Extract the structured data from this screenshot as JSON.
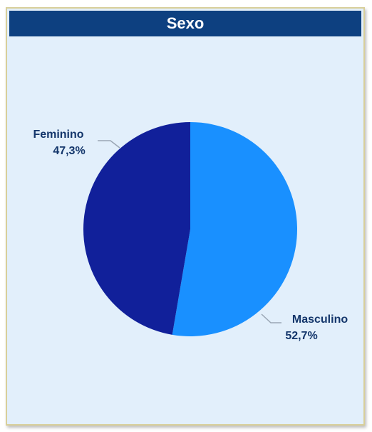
{
  "header": {
    "title": "Sexo"
  },
  "colors": {
    "header_bg": "#0d4080",
    "card_bg": "#e2effb",
    "masculino": "#1990ff",
    "feminino": "#11209a",
    "label_text": "#14366b"
  },
  "chart_data": {
    "type": "pie",
    "title": "Sexo",
    "slices": [
      {
        "label": "Masculino",
        "value": 52.7,
        "value_label": "52,7%",
        "color": "#1990ff"
      },
      {
        "label": "Feminino",
        "value": 47.3,
        "value_label": "47,3%",
        "color": "#11209a"
      }
    ],
    "start": "12 o'clock",
    "direction": "clockwise",
    "legend": "none"
  }
}
